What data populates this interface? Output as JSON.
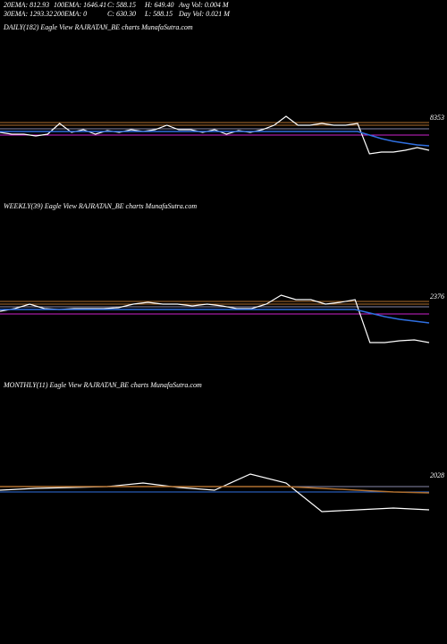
{
  "header": {
    "lines": [
      [
        "20EMA: 812.93",
        "100EMA: 1646.41",
        "C: 588.15",
        "H: 649.40",
        "Avg Vol: 0.004  M"
      ],
      [
        "30EMA: 1293.32",
        "200EMA: 0",
        "C: 630.30",
        "L: 588.15",
        "Day Vol: 0.021  M"
      ]
    ]
  },
  "chart_data": [
    {
      "type": "line",
      "title": "DAILY(182) Eagle   View  RAJRATAN_BE charts MunafaSutra.com",
      "annotation": "8353",
      "ylim": [
        0,
        1800
      ],
      "series": [
        {
          "color": "#ffffff",
          "values": [
            720,
            700,
            700,
            680,
            700,
            820,
            720,
            750,
            700,
            740,
            720,
            750,
            730,
            750,
            800,
            750,
            750,
            720,
            750,
            700,
            740,
            720,
            750,
            800,
            900,
            800,
            800,
            820,
            800,
            800,
            820,
            480,
            500,
            500,
            520,
            550,
            520
          ]
        },
        {
          "color": "#2f6fe0",
          "values": [
            730,
            730,
            730,
            730,
            730,
            730,
            730,
            730,
            730,
            730,
            730,
            730,
            730,
            730,
            730,
            730,
            730,
            730,
            730,
            730,
            730,
            730,
            730,
            730,
            730,
            730,
            730,
            730,
            730,
            730,
            730,
            690,
            650,
            620,
            600,
            580,
            570
          ]
        }
      ],
      "levels": [
        {
          "color": "#cc22cc",
          "value": 690
        },
        {
          "color": "#b07030",
          "value": 830
        },
        {
          "color": "#b07030",
          "value": 800
        },
        {
          "color": "#8888aa",
          "value": 760
        }
      ]
    },
    {
      "type": "line",
      "title": "WEEKLY(39) Eagle   View  RAJRATAN_BE charts MunafaSutra.com",
      "annotation": "2376",
      "ylim": [
        0,
        1800
      ],
      "series": [
        {
          "color": "#ffffff",
          "values": [
            720,
            750,
            800,
            750,
            740,
            750,
            750,
            750,
            760,
            800,
            820,
            800,
            800,
            780,
            800,
            780,
            750,
            750,
            800,
            900,
            850,
            850,
            800,
            820,
            850,
            370,
            370,
            390,
            400,
            370
          ]
        },
        {
          "color": "#2f6fe0",
          "values": [
            740,
            740,
            740,
            740,
            740,
            740,
            740,
            740,
            740,
            740,
            740,
            740,
            740,
            740,
            740,
            740,
            740,
            740,
            740,
            740,
            740,
            740,
            740,
            740,
            740,
            700,
            660,
            630,
            610,
            590
          ]
        }
      ],
      "levels": [
        {
          "color": "#cc22cc",
          "value": 690
        },
        {
          "color": "#b07030",
          "value": 830
        },
        {
          "color": "#b07030",
          "value": 800
        },
        {
          "color": "#8888aa",
          "value": 770
        }
      ]
    },
    {
      "type": "line",
      "title": "MONTHLY(11) Eagle   View  RAJRATAN_BE charts MunafaSutra.com",
      "annotation": "2028",
      "ylim": [
        0,
        1800
      ],
      "series": [
        {
          "color": "#ffffff",
          "values": [
            720,
            740,
            750,
            760,
            800,
            750,
            720,
            900,
            800,
            480,
            500,
            520,
            500
          ]
        },
        {
          "color": "#b07030",
          "values": [
            760,
            760,
            760,
            760,
            760,
            760,
            760,
            760,
            760,
            740,
            720,
            700,
            690
          ]
        }
      ],
      "levels": [
        {
          "color": "#2f6fe0",
          "value": 700
        },
        {
          "color": "#8888aa",
          "value": 760
        }
      ]
    }
  ]
}
